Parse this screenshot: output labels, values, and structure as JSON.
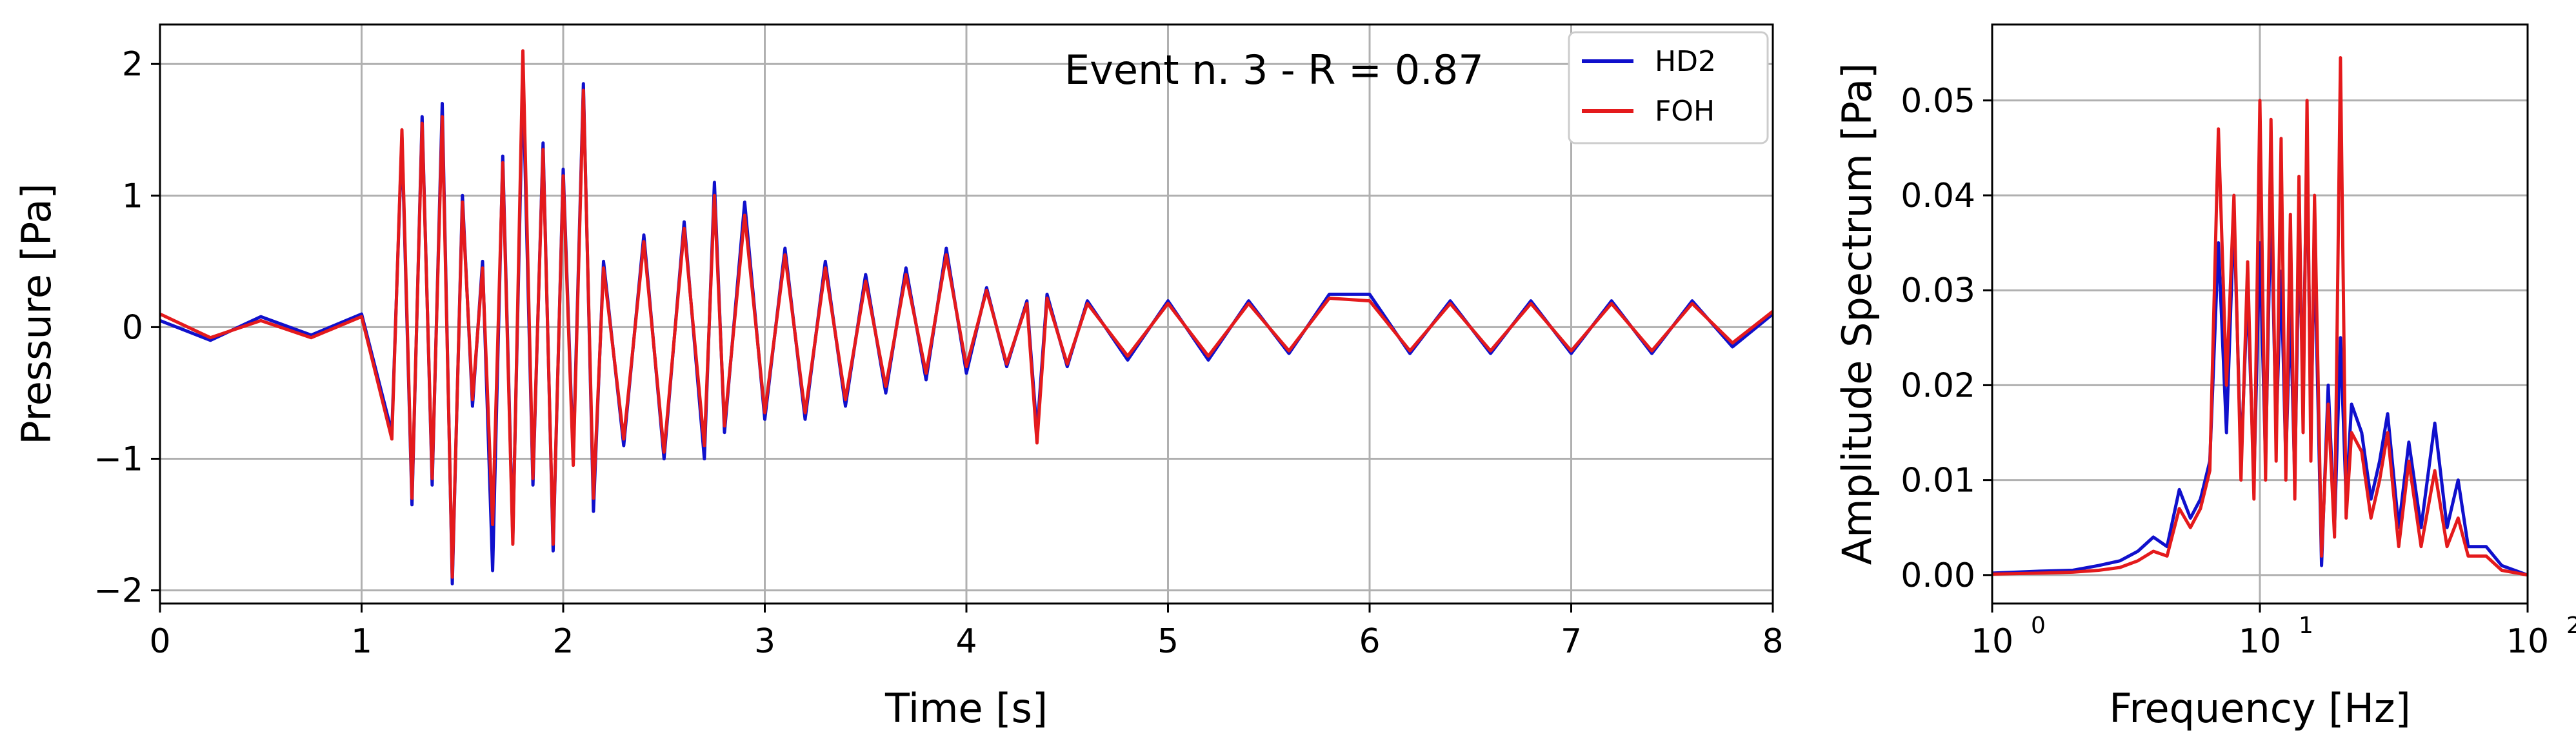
{
  "chart_data": [
    {
      "type": "line",
      "xlabel": "Time [s]",
      "ylabel": "Pressure [Pa]",
      "xlim": [
        0,
        8
      ],
      "ylim": [
        -2.1,
        2.3
      ],
      "xticks": [
        0,
        1,
        2,
        3,
        4,
        5,
        6,
        7,
        8
      ],
      "xtick_labels": [
        "0",
        "1",
        "2",
        "3",
        "4",
        "5",
        "6",
        "7",
        "8"
      ],
      "yticks": [
        -2,
        -1,
        0,
        1,
        2
      ],
      "ytick_labels": [
        "−2",
        "−1",
        "0",
        "1",
        "2"
      ],
      "grid": true,
      "annotation": "Event n. 3 - R = 0.87",
      "legend": {
        "position": "top-right",
        "entries": [
          "HD2",
          "FOH"
        ]
      },
      "colors": {
        "HD2": "#1010cc",
        "FOH": "#e41a1c"
      },
      "x": [
        0.0,
        0.25,
        0.5,
        0.75,
        1.0,
        1.15,
        1.2,
        1.25,
        1.3,
        1.35,
        1.4,
        1.45,
        1.5,
        1.55,
        1.6,
        1.65,
        1.7,
        1.75,
        1.8,
        1.85,
        1.9,
        1.95,
        2.0,
        2.05,
        2.1,
        2.15,
        2.2,
        2.3,
        2.4,
        2.5,
        2.6,
        2.7,
        2.75,
        2.8,
        2.9,
        3.0,
        3.1,
        3.2,
        3.3,
        3.4,
        3.5,
        3.6,
        3.7,
        3.8,
        3.9,
        4.0,
        4.1,
        4.2,
        4.3,
        4.35,
        4.4,
        4.5,
        4.6,
        4.8,
        5.0,
        5.2,
        5.4,
        5.6,
        5.8,
        6.0,
        6.2,
        6.4,
        6.6,
        6.8,
        7.0,
        7.2,
        7.4,
        7.6,
        7.8,
        8.0
      ],
      "series": [
        {
          "name": "HD2",
          "values": [
            0.05,
            -0.1,
            0.08,
            -0.06,
            0.1,
            -0.8,
            1.45,
            -1.35,
            1.6,
            -1.2,
            1.7,
            -1.95,
            1.0,
            -0.6,
            0.5,
            -1.85,
            1.3,
            -1.6,
            1.9,
            -1.2,
            1.4,
            -1.7,
            1.2,
            -1.0,
            1.85,
            -1.4,
            0.5,
            -0.9,
            0.7,
            -1.0,
            0.8,
            -1.0,
            1.1,
            -0.8,
            0.95,
            -0.7,
            0.6,
            -0.7,
            0.5,
            -0.6,
            0.4,
            -0.5,
            0.45,
            -0.4,
            0.6,
            -0.35,
            0.3,
            -0.3,
            0.2,
            -0.8,
            0.25,
            -0.3,
            0.2,
            -0.25,
            0.2,
            -0.25,
            0.2,
            -0.2,
            0.25,
            0.25,
            -0.2,
            0.2,
            -0.2,
            0.2,
            -0.2,
            0.2,
            -0.2,
            0.2,
            -0.15,
            0.1
          ]
        },
        {
          "name": "FOH",
          "values": [
            0.1,
            -0.08,
            0.05,
            -0.08,
            0.08,
            -0.85,
            1.5,
            -1.3,
            1.55,
            -1.15,
            1.6,
            -1.9,
            0.95,
            -0.55,
            0.45,
            -1.5,
            1.25,
            -1.65,
            2.1,
            -1.15,
            1.35,
            -1.65,
            1.15,
            -1.05,
            1.8,
            -1.3,
            0.45,
            -0.85,
            0.65,
            -0.95,
            0.75,
            -0.9,
            1.0,
            -0.75,
            0.85,
            -0.65,
            0.55,
            -0.65,
            0.45,
            -0.55,
            0.35,
            -0.45,
            0.4,
            -0.35,
            0.55,
            -0.3,
            0.28,
            -0.28,
            0.18,
            -0.88,
            0.22,
            -0.28,
            0.18,
            -0.22,
            0.18,
            -0.22,
            0.18,
            -0.18,
            0.22,
            0.2,
            -0.18,
            0.18,
            -0.18,
            0.18,
            -0.18,
            0.18,
            -0.18,
            0.18,
            -0.12,
            0.12
          ]
        }
      ]
    },
    {
      "type": "line",
      "xlabel": "Frequency [Hz]",
      "ylabel": "Amplitude Spectrum [Pa]",
      "xscale": "log",
      "xlim": [
        1,
        100
      ],
      "ylim": [
        -0.003,
        0.058
      ],
      "xticks": [
        1,
        10,
        100
      ],
      "xtick_labels": [
        "10",
        "10",
        "10"
      ],
      "xtick_exponents": [
        "0",
        "1",
        "2"
      ],
      "yticks": [
        0.0,
        0.01,
        0.02,
        0.03,
        0.04,
        0.05
      ],
      "ytick_labels": [
        "0.00",
        "0.01",
        "0.02",
        "0.03",
        "0.04",
        "0.05"
      ],
      "grid": true,
      "colors": {
        "HD2": "#1010cc",
        "FOH": "#e41a1c"
      },
      "x": [
        1.0,
        1.5,
        2.0,
        2.5,
        3.0,
        3.5,
        4.0,
        4.5,
        5.0,
        5.5,
        6.0,
        6.5,
        7.0,
        7.5,
        8.0,
        8.5,
        9.0,
        9.5,
        10.0,
        10.5,
        11.0,
        11.5,
        12.0,
        12.5,
        13.0,
        13.5,
        14.0,
        14.5,
        15.0,
        15.5,
        16.0,
        17.0,
        18.0,
        19.0,
        20.0,
        21.0,
        22.0,
        24.0,
        26.0,
        28.0,
        30.0,
        33.0,
        36.0,
        40.0,
        45.0,
        50.0,
        55.0,
        60.0,
        70.0,
        80.0,
        100.0
      ],
      "series": [
        {
          "name": "HD2",
          "values": [
            0.0002,
            0.0004,
            0.0005,
            0.001,
            0.0015,
            0.0025,
            0.004,
            0.003,
            0.009,
            0.006,
            0.008,
            0.012,
            0.035,
            0.015,
            0.038,
            0.012,
            0.03,
            0.01,
            0.035,
            0.012,
            0.04,
            0.015,
            0.032,
            0.012,
            0.028,
            0.01,
            0.035,
            0.02,
            0.046,
            0.015,
            0.035,
            0.001,
            0.02,
            0.005,
            0.025,
            0.008,
            0.018,
            0.015,
            0.008,
            0.012,
            0.017,
            0.005,
            0.014,
            0.005,
            0.016,
            0.005,
            0.01,
            0.003,
            0.003,
            0.001,
            0.0
          ]
        },
        {
          "name": "FOH",
          "values": [
            0.0001,
            0.0002,
            0.0003,
            0.0005,
            0.0008,
            0.0015,
            0.0025,
            0.002,
            0.007,
            0.005,
            0.007,
            0.011,
            0.047,
            0.02,
            0.04,
            0.01,
            0.033,
            0.008,
            0.05,
            0.01,
            0.048,
            0.012,
            0.046,
            0.01,
            0.038,
            0.008,
            0.042,
            0.015,
            0.05,
            0.012,
            0.04,
            0.002,
            0.018,
            0.004,
            0.0545,
            0.006,
            0.015,
            0.013,
            0.006,
            0.01,
            0.015,
            0.003,
            0.012,
            0.003,
            0.011,
            0.003,
            0.006,
            0.002,
            0.002,
            0.0005,
            0.0
          ]
        }
      ]
    }
  ]
}
